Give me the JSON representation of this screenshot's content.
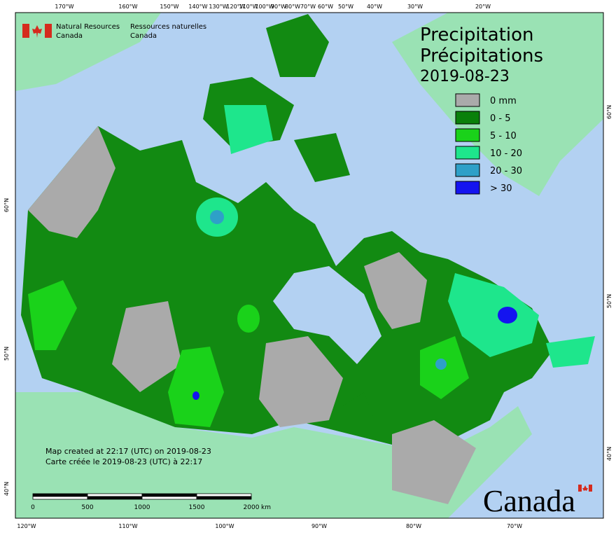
{
  "header": {
    "en_department": "Natural Resources",
    "en_country": "Canada",
    "fr_department": "Ressources naturelles",
    "fr_country": "Canada"
  },
  "title": {
    "en": "Precipitation",
    "fr": "Précipitations",
    "date": "2019-08-23"
  },
  "legend": [
    {
      "label": "0 mm",
      "color": "#aaaaaa"
    },
    {
      "label": "0 - 5",
      "color": "#0a800a"
    },
    {
      "label": "5 - 10",
      "color": "#1ad21a"
    },
    {
      "label": "10 - 20",
      "color": "#1ee68c"
    },
    {
      "label": "20 - 30",
      "color": "#2ea0c8"
    },
    {
      "label": "> 30",
      "color": "#1414f0"
    }
  ],
  "graticule": {
    "top": [
      "170°W",
      "160°W",
      "150°W",
      "140°W",
      "130°W",
      "120°W",
      "110°W",
      "100°W",
      "90°W",
      "80°W",
      "70°W",
      "60°W",
      "50°W",
      "40°W",
      "30°W",
      "20°W"
    ],
    "bottom": [
      "120°W",
      "110°W",
      "100°W",
      "90°W",
      "80°W",
      "70°W"
    ],
    "left": [
      "60°N",
      "50°N",
      "40°N"
    ],
    "right": [
      "60°N",
      "50°N",
      "40°N"
    ]
  },
  "footer": {
    "created_en": "Map created at 22:17 (UTC) on 2019-08-23",
    "created_fr": "Carte créée le 2019-08-23 (UTC) à 22:17"
  },
  "scale_bar": {
    "labels": [
      "0",
      "500",
      "1000",
      "1500",
      "2000"
    ],
    "unit": "km"
  },
  "wordmark": "Canada"
}
